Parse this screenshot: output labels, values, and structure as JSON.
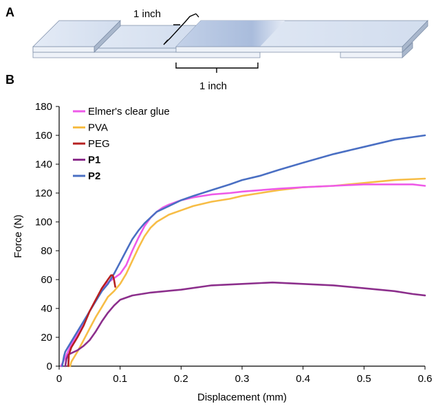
{
  "panel_a": {
    "label": "A",
    "dimension_top": "1 inch",
    "dimension_bottom": "1 inch",
    "colors": {
      "slide_top": "#dde6f3",
      "slide_side": "#a9b7cc",
      "slide_edge": "#7d8ea8",
      "overlap": "#aebfdc"
    }
  },
  "chart_data": {
    "panel_label": "B",
    "type": "line",
    "xlabel": "Displacement (mm)",
    "ylabel": "Force (N)",
    "xlim": [
      0,
      0.6
    ],
    "ylim": [
      0,
      180
    ],
    "xticks": [
      0,
      0.1,
      0.2,
      0.3,
      0.4,
      0.5,
      0.6
    ],
    "xtick_labels": [
      "0",
      "0.1",
      "0.2",
      "0.3",
      "0.4",
      "0.5",
      "0.6"
    ],
    "yticks": [
      0,
      20,
      40,
      60,
      80,
      100,
      120,
      140,
      160,
      180
    ],
    "ytick_labels": [
      "0",
      "20",
      "40",
      "60",
      "80",
      "100",
      "120",
      "140",
      "160",
      "180"
    ],
    "grid": false,
    "legend": "top-left",
    "series": [
      {
        "name": "Elmer's clear glue",
        "color": "#ee5ae8",
        "bold": false,
        "points": [
          [
            0.003,
            0
          ],
          [
            0.01,
            6
          ],
          [
            0.02,
            15
          ],
          [
            0.03,
            22
          ],
          [
            0.04,
            30
          ],
          [
            0.05,
            38
          ],
          [
            0.06,
            46
          ],
          [
            0.07,
            53
          ],
          [
            0.08,
            58
          ],
          [
            0.09,
            61
          ],
          [
            0.1,
            64
          ],
          [
            0.11,
            70
          ],
          [
            0.12,
            80
          ],
          [
            0.13,
            89
          ],
          [
            0.14,
            97
          ],
          [
            0.15,
            103
          ],
          [
            0.16,
            107
          ],
          [
            0.17,
            110
          ],
          [
            0.18,
            112
          ],
          [
            0.2,
            115
          ],
          [
            0.22,
            117
          ],
          [
            0.25,
            119
          ],
          [
            0.28,
            120
          ],
          [
            0.3,
            121
          ],
          [
            0.33,
            122
          ],
          [
            0.36,
            123
          ],
          [
            0.4,
            124
          ],
          [
            0.45,
            125
          ],
          [
            0.5,
            126
          ],
          [
            0.55,
            126
          ],
          [
            0.58,
            126
          ],
          [
            0.6,
            125
          ]
        ]
      },
      {
        "name": "PVA",
        "color": "#f7bd46",
        "bold": false,
        "points": [
          [
            0.018,
            0
          ],
          [
            0.02,
            3
          ],
          [
            0.03,
            10
          ],
          [
            0.04,
            18
          ],
          [
            0.05,
            26
          ],
          [
            0.06,
            34
          ],
          [
            0.07,
            41
          ],
          [
            0.08,
            48
          ],
          [
            0.09,
            52
          ],
          [
            0.1,
            57
          ],
          [
            0.11,
            64
          ],
          [
            0.12,
            73
          ],
          [
            0.13,
            82
          ],
          [
            0.14,
            90
          ],
          [
            0.15,
            96
          ],
          [
            0.16,
            100
          ],
          [
            0.18,
            105
          ],
          [
            0.2,
            108
          ],
          [
            0.22,
            111
          ],
          [
            0.25,
            114
          ],
          [
            0.28,
            116
          ],
          [
            0.3,
            118
          ],
          [
            0.33,
            120
          ],
          [
            0.36,
            122
          ],
          [
            0.4,
            124
          ],
          [
            0.45,
            125
          ],
          [
            0.5,
            127
          ],
          [
            0.55,
            129
          ],
          [
            0.6,
            130
          ]
        ]
      },
      {
        "name": "PEG",
        "color": "#b62020",
        "bold": false,
        "points": [
          [
            0.015,
            0
          ],
          [
            0.016,
            8
          ],
          [
            0.02,
            13
          ],
          [
            0.03,
            20
          ],
          [
            0.04,
            28
          ],
          [
            0.05,
            38
          ],
          [
            0.06,
            46
          ],
          [
            0.07,
            54
          ],
          [
            0.08,
            60
          ],
          [
            0.085,
            63
          ],
          [
            0.088,
            63
          ],
          [
            0.09,
            60
          ],
          [
            0.092,
            55
          ]
        ]
      },
      {
        "name": "P1",
        "color": "#8c2f8c",
        "bold": true,
        "points": [
          [
            0.01,
            0
          ],
          [
            0.012,
            5
          ],
          [
            0.015,
            8
          ],
          [
            0.02,
            9
          ],
          [
            0.03,
            11
          ],
          [
            0.04,
            14
          ],
          [
            0.05,
            18
          ],
          [
            0.06,
            24
          ],
          [
            0.07,
            31
          ],
          [
            0.08,
            37
          ],
          [
            0.09,
            42
          ],
          [
            0.1,
            46
          ],
          [
            0.12,
            49
          ],
          [
            0.15,
            51
          ],
          [
            0.2,
            53
          ],
          [
            0.25,
            56
          ],
          [
            0.3,
            57
          ],
          [
            0.35,
            58
          ],
          [
            0.4,
            57
          ],
          [
            0.45,
            56
          ],
          [
            0.5,
            54
          ],
          [
            0.55,
            52
          ],
          [
            0.58,
            50
          ],
          [
            0.6,
            49
          ]
        ]
      },
      {
        "name": "P2",
        "color": "#4a6fc3",
        "bold": true,
        "points": [
          [
            0.005,
            0
          ],
          [
            0.008,
            7
          ],
          [
            0.01,
            10
          ],
          [
            0.02,
            17
          ],
          [
            0.03,
            24
          ],
          [
            0.04,
            31
          ],
          [
            0.05,
            38
          ],
          [
            0.06,
            45
          ],
          [
            0.07,
            52
          ],
          [
            0.08,
            57
          ],
          [
            0.09,
            64
          ],
          [
            0.1,
            72
          ],
          [
            0.11,
            80
          ],
          [
            0.12,
            88
          ],
          [
            0.13,
            94
          ],
          [
            0.14,
            99
          ],
          [
            0.15,
            103
          ],
          [
            0.16,
            107
          ],
          [
            0.18,
            111
          ],
          [
            0.2,
            115
          ],
          [
            0.22,
            118
          ],
          [
            0.25,
            122
          ],
          [
            0.28,
            126
          ],
          [
            0.3,
            129
          ],
          [
            0.33,
            132
          ],
          [
            0.36,
            136
          ],
          [
            0.4,
            141
          ],
          [
            0.45,
            147
          ],
          [
            0.5,
            152
          ],
          [
            0.55,
            157
          ],
          [
            0.6,
            160
          ]
        ]
      }
    ]
  }
}
